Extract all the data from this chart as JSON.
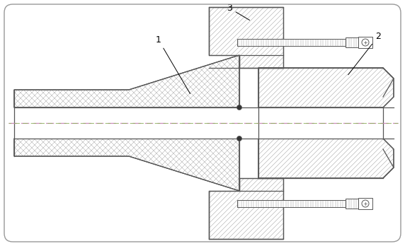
{
  "background_color": "#ffffff",
  "line_color": "#555555",
  "centerline_color_pink": "#cc88bb",
  "centerline_color_green": "#88aa55",
  "label_1": "1",
  "label_2": "2",
  "label_3": "3",
  "figsize": [
    5.72,
    3.48
  ],
  "dpi": 100,
  "cross_hatch_color": "#aaaaaa",
  "diag_hatch_color": "#aaaaaa",
  "border_color": "#999999"
}
